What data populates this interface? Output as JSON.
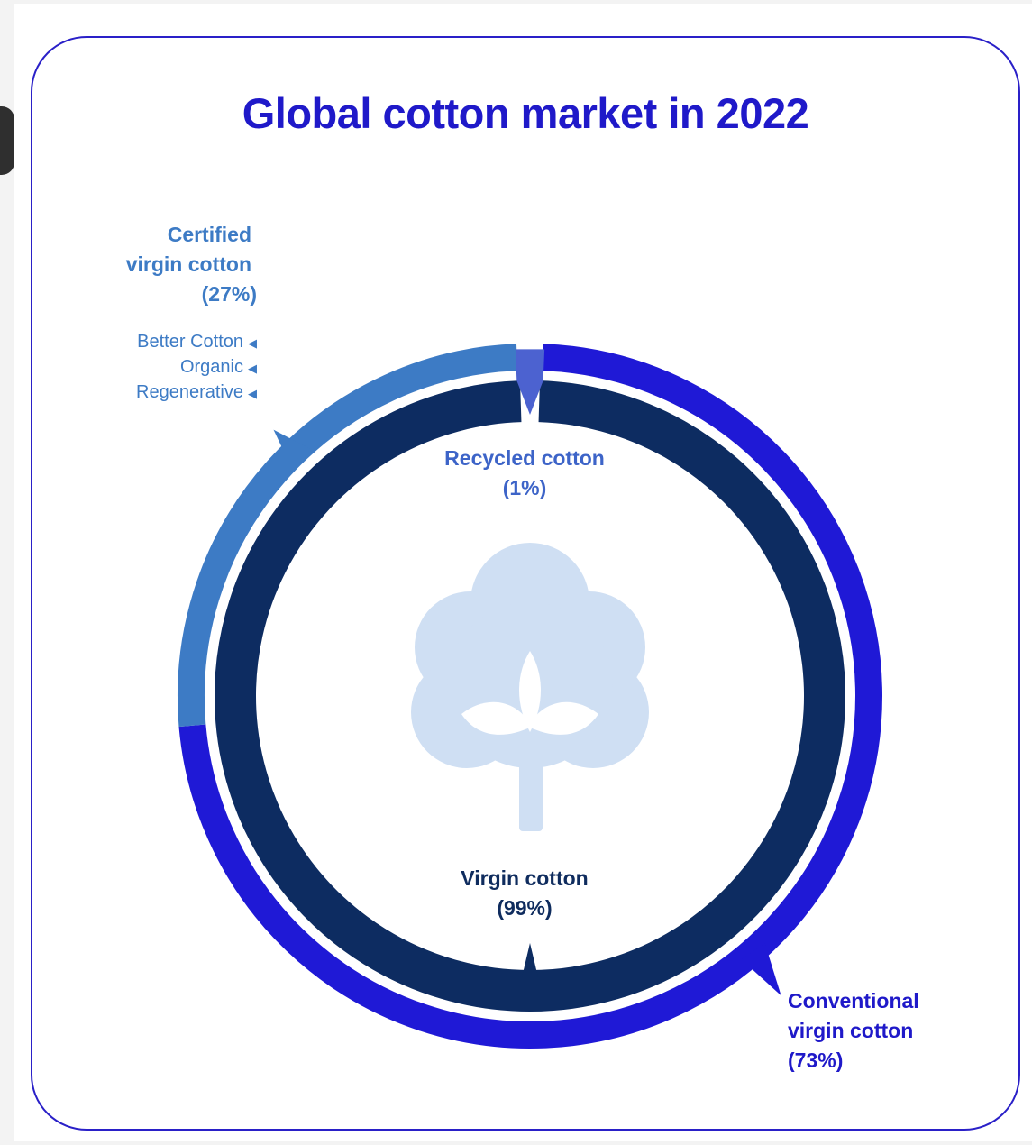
{
  "title": "Global cotton market in 2022",
  "colors": {
    "frame": "#2a20c8",
    "title": "#1f19c9",
    "conventional": "#1f19d6",
    "certified": "#3d7bc5",
    "recycled": "#4c62d0",
    "virgin": "#0d2c61",
    "cotton_icon": "#cfdff3"
  },
  "icon": "cotton-plant-icon",
  "chart_data": [
    {
      "type": "pie",
      "ring": "outer",
      "slices": [
        {
          "label": "Conventional virgin cotton",
          "value": 73
        },
        {
          "label": "Certified virgin cotton",
          "value": 27
        }
      ]
    },
    {
      "type": "pie",
      "ring": "inner",
      "slices": [
        {
          "label": "Virgin cotton",
          "value": 99
        },
        {
          "label": "Recycled cotton",
          "value": 1
        }
      ]
    }
  ],
  "labels": {
    "certified": {
      "line1": "Certified",
      "line2": "virgin cotton",
      "pct": "(27%)"
    },
    "conventional": {
      "line1": "Conventional",
      "line2": "virgin cotton",
      "pct": "(73%)"
    },
    "recycled": {
      "line1": "Recycled cotton",
      "pct": "(1%)"
    },
    "virgin": {
      "line1": "Virgin cotton",
      "pct": "(99%)"
    },
    "subcategories": [
      "Better Cotton",
      "Organic",
      "Regenerative"
    ]
  }
}
